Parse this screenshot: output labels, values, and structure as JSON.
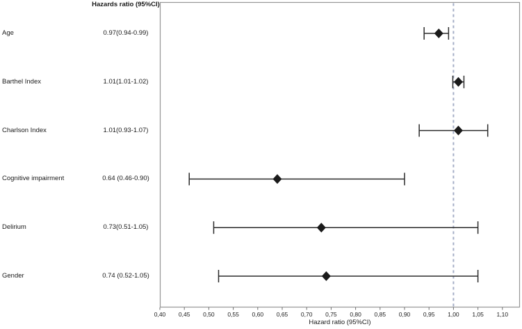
{
  "figure": {
    "column_header": "Hazards ratio (95%CI)",
    "x_axis_title": "Hazard ratio (95%CI)"
  },
  "chart_data": {
    "type": "scatter",
    "subtype": "forest-plot",
    "title": "Hazards ratio (95%CI)",
    "xlabel": "Hazard ratio (95%CI)",
    "xlim": [
      0.4,
      1.135
    ],
    "reference_line": 1.0,
    "grid": false,
    "ticks": [
      {
        "value": 0.4,
        "label": "0,40"
      },
      {
        "value": 0.45,
        "label": "0,45"
      },
      {
        "value": 0.5,
        "label": "0,50"
      },
      {
        "value": 0.55,
        "label": "0,55"
      },
      {
        "value": 0.6,
        "label": "0,60"
      },
      {
        "value": 0.65,
        "label": "0,65"
      },
      {
        "value": 0.7,
        "label": "0,70"
      },
      {
        "value": 0.75,
        "label": "0,75"
      },
      {
        "value": 0.8,
        "label": "0,80"
      },
      {
        "value": 0.85,
        "label": "0,85"
      },
      {
        "value": 0.9,
        "label": "0,90"
      },
      {
        "value": 0.95,
        "label": "0,95"
      },
      {
        "value": 1.0,
        "label": "1,00"
      },
      {
        "value": 1.05,
        "label": "1,05"
      },
      {
        "value": 1.1,
        "label": "1,10"
      }
    ],
    "rows": [
      {
        "label": "Age",
        "ci_text": "0.97(0.94-0.99)",
        "hr": 0.97,
        "low": 0.94,
        "high": 0.99
      },
      {
        "label": "Barthel Index",
        "ci_text": "1.01(1.01-1.02)",
        "hr": 1.01,
        "low": 1.01,
        "high": 1.02
      },
      {
        "label": "Charlson Index",
        "ci_text": "1.01(0.93-1.07)",
        "hr": 1.01,
        "low": 0.93,
        "high": 1.07
      },
      {
        "label": "Cognitive impairment",
        "ci_text": "0.64 (0.46-0.90)",
        "hr": 0.64,
        "low": 0.46,
        "high": 0.9
      },
      {
        "label": "Delirium",
        "ci_text": "0.73(0.51-1.05)",
        "hr": 0.73,
        "low": 0.51,
        "high": 1.05
      },
      {
        "label": "Gender",
        "ci_text": "0.74 (0.52-1.05)",
        "hr": 0.74,
        "low": 0.52,
        "high": 1.05
      }
    ],
    "colors": {
      "marker": "#1a1a1a",
      "ci_line": "#2a2a2a",
      "frame": "#969696",
      "tick": "#6e6e6e",
      "reference_line": "#a4adc6",
      "background": "#ffffff"
    },
    "legend": null
  }
}
